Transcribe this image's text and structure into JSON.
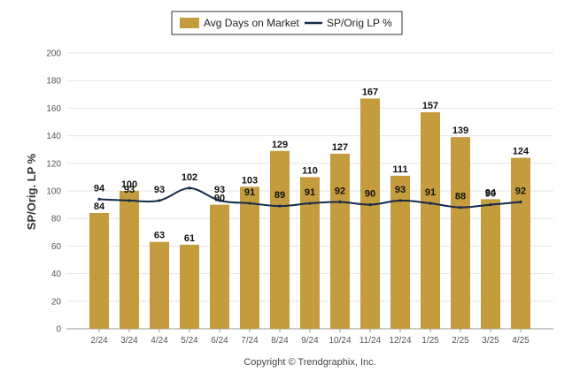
{
  "colors": {
    "bar": "#c49b3d",
    "line": "#14294a",
    "grid": "#e6e6e6",
    "axis": "#999999"
  },
  "copyright": "Copyright © Trendgraphix, Inc.",
  "chart_data": {
    "type": "bar",
    "categories": [
      "2/24",
      "3/24",
      "4/24",
      "5/24",
      "6/24",
      "7/24",
      "8/24",
      "9/24",
      "10/24",
      "11/24",
      "12/24",
      "1/25",
      "2/25",
      "3/25",
      "4/25"
    ],
    "ylabel": "SP/Orig. LP %",
    "ylim": [
      0,
      200
    ],
    "yticks": [
      0,
      20,
      40,
      60,
      80,
      100,
      120,
      140,
      160,
      180,
      200
    ],
    "grid": true,
    "legend_position": "top-center",
    "series": [
      {
        "name": "Avg Days on Market",
        "type": "bar",
        "values": [
          84,
          100,
          63,
          61,
          90,
          103,
          129,
          110,
          127,
          167,
          111,
          157,
          139,
          94,
          124
        ]
      },
      {
        "name": "SP/Orig LP %",
        "type": "line",
        "values": [
          94,
          93,
          93,
          102,
          93,
          91,
          89,
          91,
          92,
          90,
          93,
          91,
          88,
          90,
          92
        ]
      }
    ]
  }
}
